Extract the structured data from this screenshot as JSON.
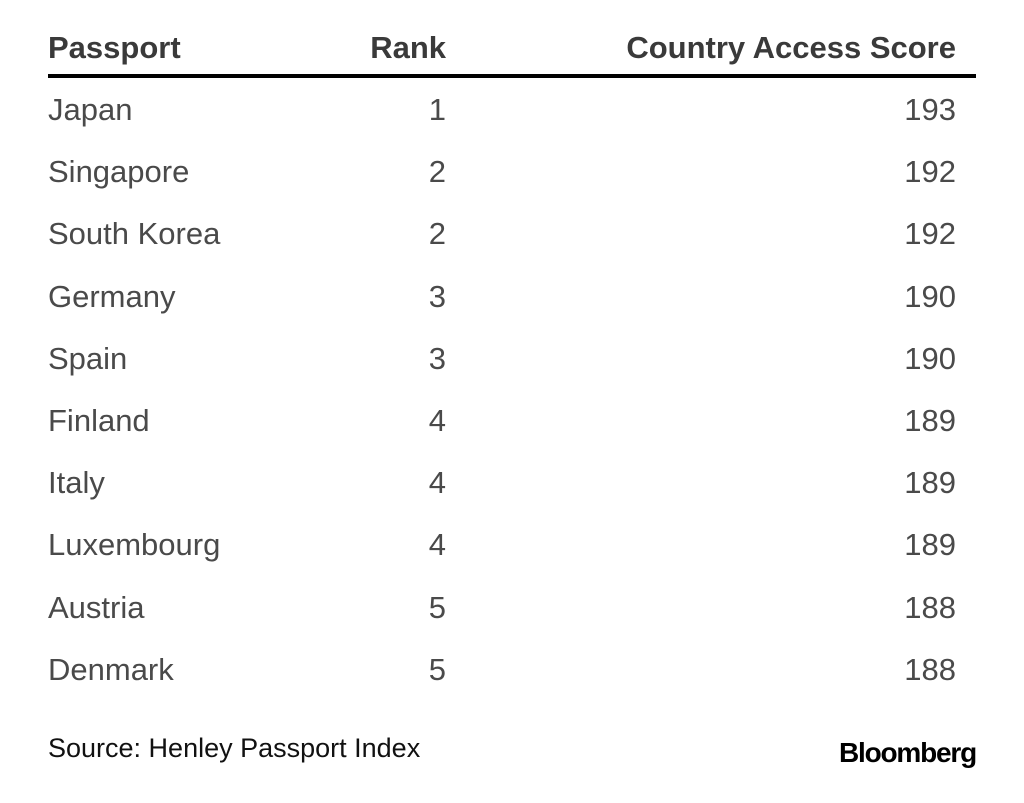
{
  "chart_data": {
    "type": "table",
    "columns": [
      "Passport",
      "Rank",
      "Country Access Score"
    ],
    "rows": [
      {
        "passport": "Japan",
        "rank": "1",
        "score": "193"
      },
      {
        "passport": "Singapore",
        "rank": "2",
        "score": "192"
      },
      {
        "passport": "South Korea",
        "rank": "2",
        "score": "192"
      },
      {
        "passport": "Germany",
        "rank": "3",
        "score": "190"
      },
      {
        "passport": "Spain",
        "rank": "3",
        "score": "190"
      },
      {
        "passport": "Finland",
        "rank": "4",
        "score": "189"
      },
      {
        "passport": "Italy",
        "rank": "4",
        "score": "189"
      },
      {
        "passport": "Luxembourg",
        "rank": "4",
        "score": "189"
      },
      {
        "passport": "Austria",
        "rank": "5",
        "score": "188"
      },
      {
        "passport": "Denmark",
        "rank": "5",
        "score": "188"
      }
    ]
  },
  "footer": {
    "source": "Source: Henley Passport Index",
    "brand": "Bloomberg"
  },
  "colors": {
    "header_rule": "#000000",
    "text": "#4a4a4a"
  }
}
